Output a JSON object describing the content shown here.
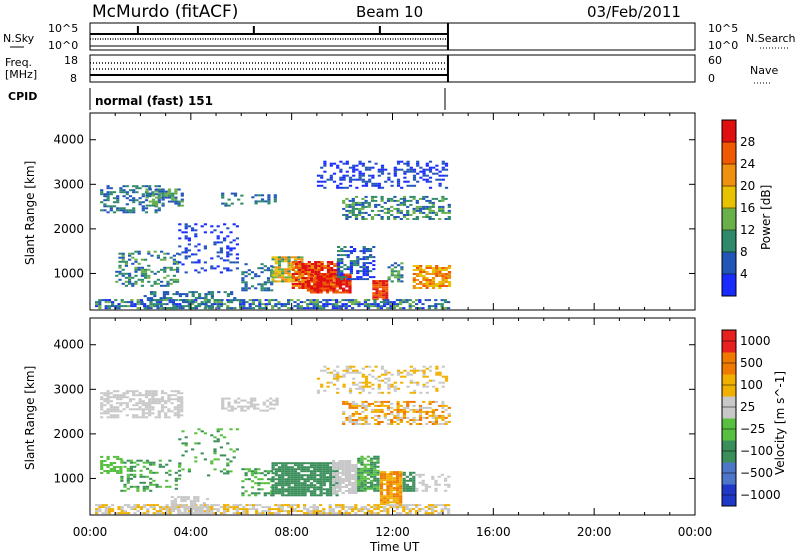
{
  "header": {
    "station": "McMurdo (fitACF)",
    "beam": "Beam 10",
    "date": "03/Feb/2011"
  },
  "strips": {
    "nsky_label": "N.Sky",
    "nsky_ticks": [
      "10^5",
      "10^0"
    ],
    "nsearch_label": "N.Search",
    "nsearch_ticks": [
      "10^5",
      "10^0"
    ],
    "freq_label_1": "Freq.",
    "freq_label_2": "[MHz]",
    "freq_ticks": [
      "18",
      "8"
    ],
    "nave_label": "Nave",
    "nave_ticks": [
      "60",
      "0"
    ],
    "cpid_label": "CPID",
    "cpid_value": "normal (fast) 151"
  },
  "chart_data": [
    {
      "type": "heatmap",
      "name": "power-panel",
      "ylabel": "Slant Range [km]",
      "xlabel": "Time UT",
      "x_ticks": [
        "00:00",
        "04:00",
        "08:00",
        "12:00",
        "16:00",
        "20:00",
        "00:00"
      ],
      "xlim_hours": [
        0,
        24
      ],
      "y_ticks": [
        "1000",
        "2000",
        "3000",
        "4000"
      ],
      "y_tick_values": [
        1000,
        2000,
        3000,
        4000
      ],
      "ylim": [
        180,
        4600
      ],
      "data_end_hour": 14.2,
      "colorbar_label": "Power [dB]",
      "colorbar_ticks": [
        "4",
        "8",
        "12",
        "16",
        "20",
        "24",
        "28"
      ],
      "colorbar_colors": [
        "#1a2bff",
        "#2156b8",
        "#2e8a6a",
        "#6ab04a",
        "#e8c200",
        "#f09010",
        "#ef5a00",
        "#e01010"
      ]
    },
    {
      "type": "heatmap",
      "name": "velocity-panel",
      "ylabel": "Slant Range [km]",
      "xlabel": "Time UT",
      "x_ticks": [
        "00:00",
        "04:00",
        "08:00",
        "12:00",
        "16:00",
        "20:00",
        "00:00"
      ],
      "xlim_hours": [
        0,
        24
      ],
      "y_ticks": [
        "1000",
        "2000",
        "3000",
        "4000"
      ],
      "y_tick_values": [
        1000,
        2000,
        3000,
        4000
      ],
      "ylim": [
        180,
        4600
      ],
      "data_end_hour": 14.2,
      "colorbar_label": "Velocity [m s^-1]",
      "colorbar_ticks": [
        "1000",
        "500",
        "100",
        "25",
        "−25",
        "−100",
        "−500",
        "−1000"
      ],
      "colorbar_colors": [
        "#2038c8",
        "#4e76c8",
        "#3a8e5a",
        "#58c040",
        "#c8c8c8",
        "#f0b000",
        "#f07a00",
        "#e82020"
      ]
    }
  ],
  "axis": {
    "time_label": "Time UT"
  }
}
